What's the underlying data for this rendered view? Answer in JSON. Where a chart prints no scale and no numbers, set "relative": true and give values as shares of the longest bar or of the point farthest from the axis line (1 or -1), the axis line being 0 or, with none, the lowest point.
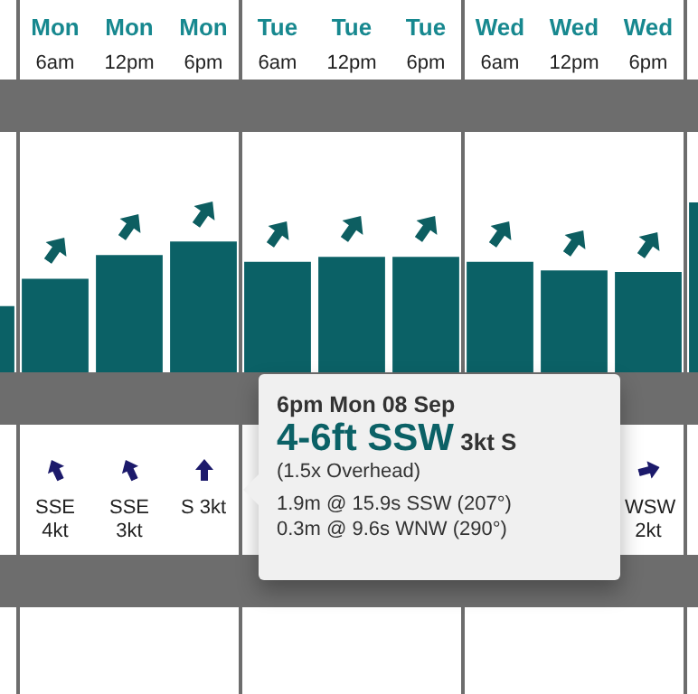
{
  "chart_data": {
    "type": "bar",
    "relative": true,
    "color": "#0b6166",
    "categories": [
      null,
      "Mon 6am",
      "Mon 12pm",
      "Mon 6pm",
      "Tue 6am",
      "Tue 12pm",
      "Tue 6pm",
      "Wed 6am",
      "Wed 12pm",
      "Wed 6pm",
      null
    ],
    "values": [
      0.39,
      0.55,
      0.69,
      0.77,
      0.65,
      0.68,
      0.68,
      0.65,
      0.6,
      0.59,
      1
    ],
    "annotations": [
      "6pm Mon 08 Sep",
      "4-6ft SSW",
      "3kt S",
      "(1.5x Overhead)",
      "1.9m @ 15.9s SSW (207°)",
      "0.3m @ 9.6s WNW (290°)",
      "SSE 4kt",
      "SSE 3kt",
      "S 3kt",
      "WSW 2kt"
    ]
  }
}
